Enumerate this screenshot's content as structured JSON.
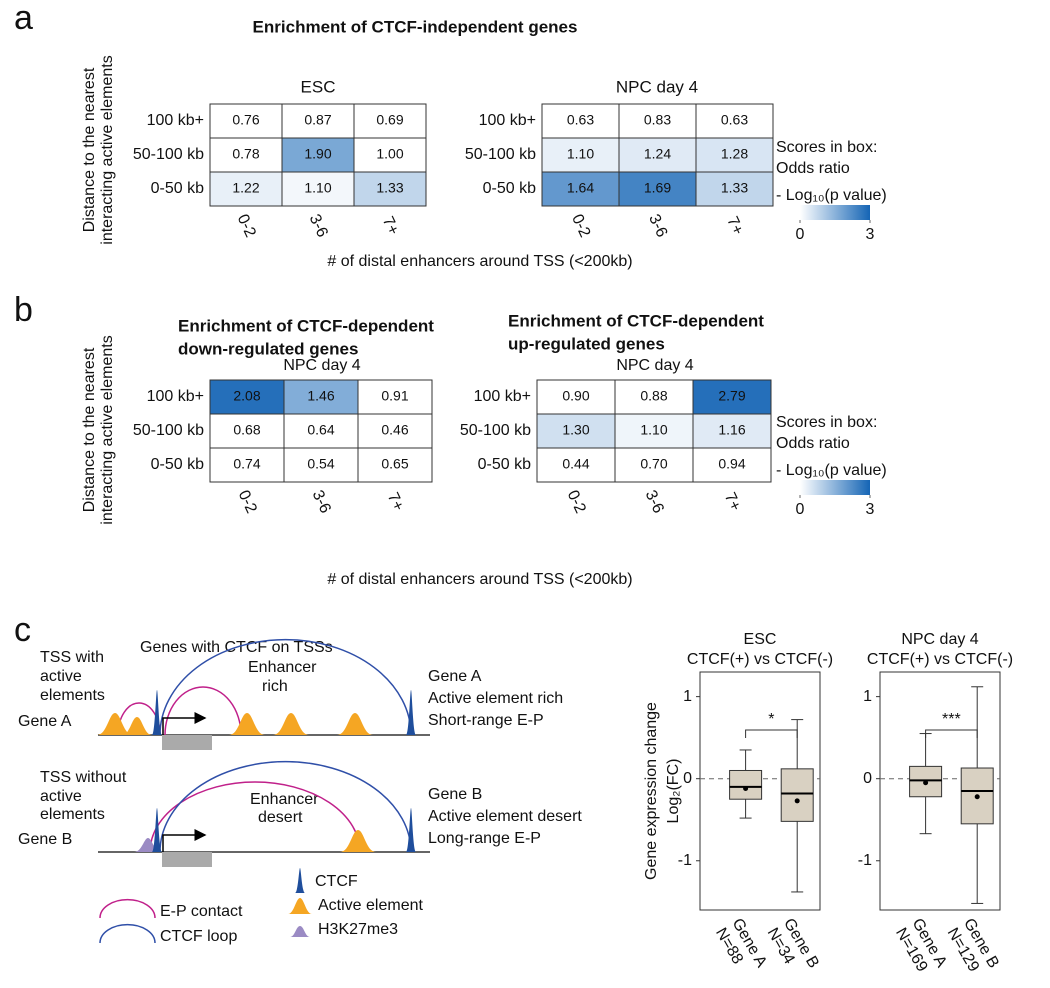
{
  "panel_labels": [
    "a",
    "b",
    "c"
  ],
  "panel_a": {
    "title": "Enrichment of CTCF-independent genes",
    "y_label": [
      "Distance to the nearest",
      "interacting active elements"
    ],
    "x_label": "# of distal enhancers around TSS (<200kb)",
    "legend": {
      "title": "Scores in box:",
      "text": "Odds ratio",
      "color_label": "- Log₁₀(p value)",
      "zlim": [
        0,
        3
      ],
      "zticks": [
        0,
        3
      ],
      "colors": [
        "#ffffff",
        "#1565b5"
      ]
    }
  },
  "panel_b": {
    "y_label": [
      "Distance to the nearest",
      "interacting active elements"
    ],
    "x_label": "# of distal enhancers around TSS (<200kb)",
    "legend": {
      "title": "Scores in box:",
      "text": "Odds ratio",
      "color_label": "- Log₁₀(p value)",
      "zlim": [
        0,
        3
      ],
      "zticks": [
        0,
        3
      ],
      "colors": [
        "#ffffff",
        "#1565b5"
      ]
    }
  },
  "chart_data": [
    {
      "type": "heatmap",
      "title": "ESC",
      "x_categories": [
        "0-2",
        "3-6",
        "7+"
      ],
      "y_categories": [
        "100 kb+",
        "50-100 kb",
        "0-50 kb"
      ],
      "values": [
        [
          0.76,
          0.87,
          0.69
        ],
        [
          0.78,
          1.9,
          1.0
        ],
        [
          1.22,
          1.1,
          1.33
        ]
      ],
      "value_labels": [
        [
          "0.76",
          "0.87",
          "0.69"
        ],
        [
          "0.78",
          "1.90",
          "1.00"
        ],
        [
          "1.22",
          "1.10",
          "1.33"
        ]
      ],
      "color_values": [
        [
          0,
          0,
          0
        ],
        [
          0,
          1.7,
          0
        ],
        [
          0.3,
          0.15,
          0.8
        ]
      ]
    },
    {
      "type": "heatmap",
      "title": "NPC day 4",
      "x_categories": [
        "0-2",
        "3-6",
        "7+"
      ],
      "y_categories": [
        "100 kb+",
        "50-100 kb",
        "0-50 kb"
      ],
      "values": [
        [
          0.63,
          0.83,
          0.63
        ],
        [
          1.1,
          1.24,
          1.28
        ],
        [
          1.64,
          1.69,
          1.33
        ]
      ],
      "value_labels": [
        [
          "0.63",
          "0.83",
          "0.63"
        ],
        [
          "1.10",
          "1.24",
          "1.28"
        ],
        [
          "1.64",
          "1.69",
          "1.33"
        ]
      ],
      "color_values": [
        [
          0,
          0,
          0
        ],
        [
          0.3,
          0.4,
          0.5
        ],
        [
          2.0,
          2.4,
          0.8
        ]
      ]
    },
    {
      "type": "heatmap",
      "title": [
        "Enrichment of CTCF-dependent",
        "down-regulated genes"
      ],
      "subtitle": "NPC day 4",
      "x_categories": [
        "0-2",
        "3-6",
        "7+"
      ],
      "y_categories": [
        "100 kb+",
        "50-100 kb",
        "0-50 kb"
      ],
      "values": [
        [
          2.08,
          1.46,
          0.91
        ],
        [
          0.68,
          0.64,
          0.46
        ],
        [
          0.74,
          0.54,
          0.65
        ]
      ],
      "value_labels": [
        [
          "2.08",
          "1.46",
          "0.91"
        ],
        [
          "0.68",
          "0.64",
          "0.46"
        ],
        [
          "0.74",
          "0.54",
          "0.65"
        ]
      ],
      "color_values": [
        [
          2.8,
          1.6,
          0
        ],
        [
          0,
          0,
          0
        ],
        [
          0,
          0,
          0
        ]
      ]
    },
    {
      "type": "heatmap",
      "title": [
        "Enrichment of CTCF-dependent",
        "up-regulated genes"
      ],
      "subtitle": "NPC day 4",
      "x_categories": [
        "0-2",
        "3-6",
        "7+"
      ],
      "y_categories": [
        "100 kb+",
        "50-100 kb",
        "0-50 kb"
      ],
      "values": [
        [
          0.9,
          0.88,
          2.79
        ],
        [
          1.3,
          1.1,
          1.16
        ],
        [
          0.44,
          0.7,
          0.94
        ]
      ],
      "value_labels": [
        [
          "0.90",
          "0.88",
          "2.79"
        ],
        [
          "1.30",
          "1.10",
          "1.16"
        ],
        [
          "0.44",
          "0.70",
          "0.94"
        ]
      ],
      "color_values": [
        [
          0,
          0,
          2.8
        ],
        [
          0.6,
          0.2,
          0.4
        ],
        [
          0,
          0,
          0
        ]
      ]
    },
    {
      "type": "box",
      "title": "ESC",
      "subtitle": "CTCF(+) vs CTCF(-)",
      "y_label": [
        "Gene expression change",
        "Log₂(FC)"
      ],
      "categories": [
        "Gene A",
        "Gene B"
      ],
      "n_labels": [
        "N=88",
        "N=34"
      ],
      "low": [
        -0.48,
        -1.38
      ],
      "q1": [
        -0.25,
        -0.52
      ],
      "median": [
        -0.1,
        -0.18
      ],
      "q3": [
        0.1,
        0.12
      ],
      "high": [
        0.35,
        0.72
      ],
      "mean": [
        -0.12,
        -0.27
      ],
      "ylim": [
        -1.6,
        1.3
      ],
      "yticks": [
        -1,
        0,
        1
      ],
      "reference_line": 0,
      "significance": "*",
      "color": "#d9d1c2"
    },
    {
      "type": "box",
      "title": "NPC day 4",
      "subtitle": "CTCF(+) vs CTCF(-)",
      "categories": [
        "Gene A",
        "Gene B"
      ],
      "n_labels": [
        "N=169",
        "N=129"
      ],
      "low": [
        -0.67,
        -1.52
      ],
      "q1": [
        -0.22,
        -0.55
      ],
      "median": [
        -0.02,
        -0.15
      ],
      "q3": [
        0.15,
        0.13
      ],
      "high": [
        0.55,
        1.12
      ],
      "mean": [
        -0.05,
        -0.22
      ],
      "ylim": [
        -1.6,
        1.3
      ],
      "yticks": [
        -1,
        0,
        1
      ],
      "reference_line": 0,
      "significance": "***",
      "color": "#d9d1c2"
    }
  ],
  "diagram": {
    "title": "Genes with CTCF on TSSs",
    "gene_a": {
      "left_label": "Gene A",
      "tss_label": [
        "TSS with",
        "active",
        "elements"
      ],
      "region_label": [
        "Enhancer",
        "rich"
      ],
      "right_labels": [
        "Gene A",
        "Active element rich",
        "Short-range E-P"
      ]
    },
    "gene_b": {
      "left_label": "Gene B",
      "tss_label": [
        "TSS without",
        "active",
        "elements"
      ],
      "region_label": [
        "Enhancer",
        "desert"
      ],
      "right_labels": [
        "Gene B",
        "Active element desert",
        "Long-range E-P"
      ]
    },
    "legend": [
      "E-P contact",
      "CTCF loop",
      "CTCF",
      "Active element",
      "H3K27me3"
    ]
  }
}
